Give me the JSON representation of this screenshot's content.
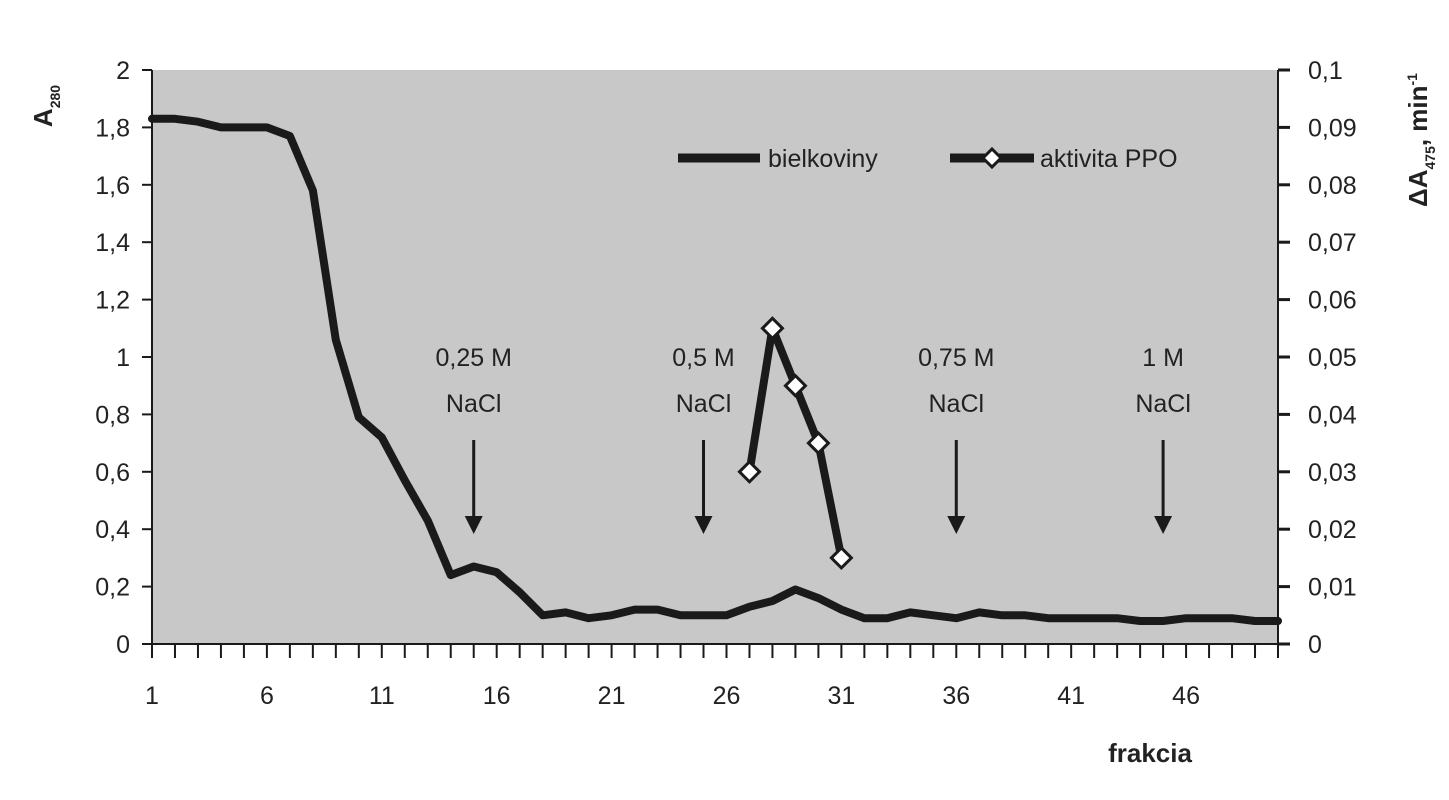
{
  "chart_data": {
    "type": "line",
    "x": [
      1,
      2,
      3,
      4,
      5,
      6,
      7,
      8,
      9,
      10,
      11,
      12,
      13,
      14,
      15,
      16,
      17,
      18,
      19,
      20,
      21,
      22,
      23,
      24,
      25,
      26,
      27,
      28,
      29,
      30,
      31,
      32,
      33,
      34,
      35,
      36,
      37,
      38,
      39,
      40,
      41,
      42,
      43,
      44,
      45,
      46,
      47,
      48,
      49,
      50
    ],
    "x_tick_labels": [
      "1",
      "6",
      "11",
      "16",
      "21",
      "26",
      "31",
      "36",
      "41",
      "46"
    ],
    "x_ticks": [
      1,
      6,
      11,
      16,
      21,
      26,
      31,
      36,
      41,
      46
    ],
    "xlabel": "frakcia",
    "ylabel": "A280",
    "ylabel_main": "A",
    "ylabel_sub": "280",
    "ylim": [
      0,
      2
    ],
    "y_ticks": [
      0,
      0.2,
      0.4,
      0.6,
      0.8,
      1,
      1.2,
      1.4,
      1.6,
      1.8,
      2
    ],
    "y_tick_labels": [
      "0",
      "0,2",
      "0,4",
      "0,6",
      "0,8",
      "1",
      "1,2",
      "1,4",
      "1,6",
      "1,8",
      "2"
    ],
    "y2label": "ΔA475 min-1",
    "y2label_parts": {
      "delta": "ΔA",
      "sub": "475",
      "sep": ",",
      "unit": "min",
      "sup": "-1"
    },
    "y2lim": [
      0,
      0.1
    ],
    "y2_ticks": [
      0,
      0.01,
      0.02,
      0.03,
      0.04,
      0.05,
      0.06,
      0.07,
      0.08,
      0.09,
      0.1
    ],
    "y2_tick_labels": [
      "0",
      "0,01",
      "0,02",
      "0,03",
      "0,04",
      "0,05",
      "0,06",
      "0,07",
      "0,08",
      "0,09",
      "0,1"
    ],
    "legend_position": "top-right",
    "grid": false,
    "series": [
      {
        "name": "bielkoviny",
        "axis": "left",
        "color": "#1a1a1a",
        "marker": "none",
        "x": [
          1,
          2,
          3,
          4,
          5,
          6,
          7,
          8,
          9,
          10,
          11,
          12,
          13,
          14,
          15,
          16,
          17,
          18,
          19,
          20,
          21,
          22,
          23,
          24,
          25,
          26,
          27,
          28,
          29,
          30,
          31,
          32,
          33,
          34,
          35,
          36,
          37,
          38,
          39,
          40,
          41,
          42,
          43,
          44,
          45,
          46,
          47,
          48,
          49,
          50
        ],
        "values": [
          1.83,
          1.83,
          1.82,
          1.8,
          1.8,
          1.8,
          1.77,
          1.58,
          1.06,
          0.79,
          0.72,
          0.57,
          0.43,
          0.24,
          0.27,
          0.25,
          0.18,
          0.1,
          0.11,
          0.09,
          0.1,
          0.12,
          0.12,
          0.1,
          0.1,
          0.1,
          0.13,
          0.15,
          0.19,
          0.16,
          0.12,
          0.09,
          0.09,
          0.11,
          0.1,
          0.09,
          0.11,
          0.1,
          0.1,
          0.09,
          0.09,
          0.09,
          0.09,
          0.08,
          0.08,
          0.09,
          0.09,
          0.09,
          0.08,
          0.08
        ]
      },
      {
        "name": "aktivita PPO",
        "axis": "right",
        "color": "#1a1a1a",
        "marker": "diamond",
        "x": [
          27,
          28,
          29,
          30,
          31
        ],
        "values": [
          0.03,
          0.055,
          0.045,
          0.035,
          0.015
        ]
      }
    ],
    "annotations": [
      {
        "line1": "0,25 M",
        "line2": "NaCl",
        "x": 15
      },
      {
        "line1": "0,5 M",
        "line2": "NaCl",
        "x": 25
      },
      {
        "line1": "0,75 M",
        "line2": "NaCl",
        "x": 36
      },
      {
        "line1": "1 M",
        "line2": "NaCl",
        "x": 45
      }
    ],
    "colors": {
      "plot_bg": "#c8c8c8",
      "ink": "#1a1a1a"
    }
  }
}
